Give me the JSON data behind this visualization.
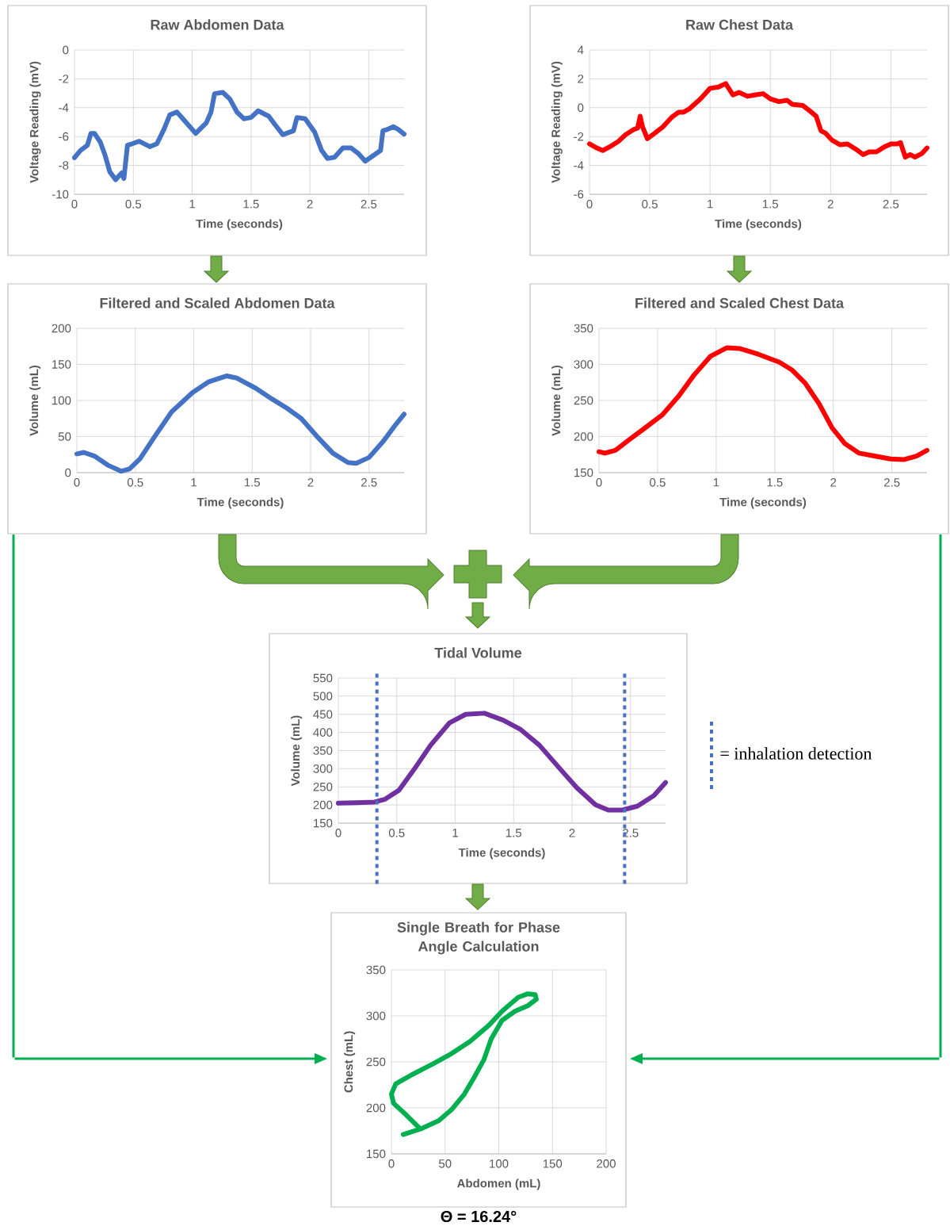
{
  "chart_data": [
    {
      "type": "line",
      "title": "Raw Abdomen Data",
      "xlabel": "Time (seconds)",
      "ylabel": "Voltage Reading (mV)",
      "x": [
        0,
        0.05,
        0.11,
        0.14,
        0.17,
        0.22,
        0.26,
        0.3,
        0.35,
        0.4,
        0.42,
        0.45,
        0.49,
        0.55,
        0.64,
        0.7,
        0.76,
        0.81,
        0.87,
        0.94,
        1.03,
        1.12,
        1.16,
        1.19,
        1.26,
        1.32,
        1.38,
        1.44,
        1.5,
        1.56,
        1.65,
        1.7,
        1.77,
        1.86,
        1.89,
        1.96,
        2.04,
        2.1,
        2.15,
        2.21,
        2.28,
        2.35,
        2.41,
        2.47,
        2.55,
        2.6,
        2.62,
        2.66,
        2.71,
        2.75,
        2.8
      ],
      "series": [
        {
          "color": "#4472c4",
          "values": [
            -7.47,
            -6.97,
            -6.6,
            -5.78,
            -5.78,
            -6.4,
            -7.3,
            -8.44,
            -8.99,
            -8.53,
            -8.9,
            -6.6,
            -6.5,
            -6.33,
            -6.7,
            -6.5,
            -5.5,
            -4.5,
            -4.3,
            -4.95,
            -5.78,
            -5.05,
            -4.3,
            -3.03,
            -2.94,
            -3.4,
            -4.3,
            -4.77,
            -4.68,
            -4.22,
            -4.59,
            -5.14,
            -5.87,
            -5.6,
            -4.68,
            -4.77,
            -5.69,
            -6.97,
            -7.52,
            -7.43,
            -6.79,
            -6.79,
            -7.16,
            -7.71,
            -7.25,
            -6.97,
            -5.6,
            -5.5,
            -5.32,
            -5.5,
            -5.83
          ]
        }
      ],
      "xlim": [
        0,
        2.8
      ],
      "xticks": [
        0,
        0.5,
        1,
        1.5,
        2,
        2.5
      ],
      "ylim": [
        -10,
        0
      ],
      "yticks": [
        -10,
        -8,
        -6,
        -4,
        -2,
        0
      ],
      "grid": true
    },
    {
      "type": "line",
      "title": "Raw Chest Data",
      "xlabel": "Time (seconds)",
      "ylabel": "Voltage Reading (mV)",
      "x": [
        0,
        0.06,
        0.11,
        0.17,
        0.24,
        0.3,
        0.37,
        0.4,
        0.42,
        0.44,
        0.48,
        0.54,
        0.61,
        0.68,
        0.74,
        0.78,
        0.83,
        0.92,
        1.0,
        1.07,
        1.13,
        1.19,
        1.24,
        1.31,
        1.37,
        1.44,
        1.5,
        1.57,
        1.64,
        1.68,
        1.77,
        1.84,
        1.88,
        1.92,
        1.96,
        2.01,
        2.08,
        2.14,
        2.21,
        2.27,
        2.32,
        2.38,
        2.45,
        2.5,
        2.55,
        2.58,
        2.62,
        2.66,
        2.7,
        2.76,
        2.8
      ],
      "series": [
        {
          "color": "#ff0000",
          "values": [
            -2.51,
            -2.79,
            -2.97,
            -2.7,
            -2.33,
            -1.87,
            -1.5,
            -1.41,
            -0.59,
            -1.32,
            -2.15,
            -1.78,
            -1.32,
            -0.68,
            -0.31,
            -0.31,
            -0.07,
            0.61,
            1.34,
            1.43,
            1.67,
            0.88,
            1.06,
            0.79,
            0.88,
            0.97,
            0.61,
            0.42,
            0.51,
            0.24,
            0.15,
            -0.31,
            -0.59,
            -1.6,
            -1.78,
            -2.24,
            -2.57,
            -2.51,
            -2.88,
            -3.25,
            -3.06,
            -3.06,
            -2.7,
            -2.51,
            -2.51,
            -2.42,
            -3.43,
            -3.25,
            -3.43,
            -3.16,
            -2.79
          ]
        }
      ],
      "xlim": [
        0,
        2.8
      ],
      "xticks": [
        0,
        0.5,
        1,
        1.5,
        2,
        2.5
      ],
      "ylim": [
        -6,
        4
      ],
      "yticks": [
        -6,
        -4,
        -2,
        0,
        2,
        4
      ],
      "grid": true
    },
    {
      "type": "line",
      "title": "Filtered and Scaled Abdomen Data",
      "xlabel": "Time (seconds)",
      "ylabel": "Volume (mL)",
      "x": [
        0,
        0.06,
        0.15,
        0.27,
        0.38,
        0.45,
        0.54,
        0.67,
        0.81,
        0.99,
        1.13,
        1.28,
        1.37,
        1.53,
        1.67,
        1.8,
        1.92,
        2.05,
        2.19,
        2.32,
        2.39,
        2.5,
        2.62,
        2.73,
        2.8
      ],
      "series": [
        {
          "color": "#4472c4",
          "values": [
            26,
            28,
            23,
            10,
            2,
            5,
            19,
            51,
            84,
            111,
            126,
            134,
            131,
            117,
            102,
            89,
            75,
            51,
            27,
            14,
            13,
            21,
            43,
            67,
            81
          ]
        }
      ],
      "xlim": [
        0,
        2.8
      ],
      "xticks": [
        0,
        0.5,
        1,
        1.5,
        2,
        2.5
      ],
      "ylim": [
        0,
        200
      ],
      "yticks": [
        0,
        50,
        100,
        150,
        200
      ],
      "grid": true
    },
    {
      "type": "line",
      "title": "Filtered and Scaled Chest Data",
      "xlabel": "Time (seconds)",
      "ylabel": "Volume (mL)",
      "x": [
        0,
        0.05,
        0.14,
        0.27,
        0.41,
        0.54,
        0.68,
        0.81,
        0.95,
        1.09,
        1.2,
        1.36,
        1.54,
        1.65,
        1.76,
        1.88,
        1.99,
        2.1,
        2.22,
        2.35,
        2.49,
        2.6,
        2.71,
        2.8
      ],
      "series": [
        {
          "color": "#ff0000",
          "values": [
            179,
            177,
            181,
            197,
            214,
            230,
            256,
            285,
            311,
            323,
            322,
            314,
            303,
            292,
            274,
            245,
            212,
            190,
            177,
            173,
            169,
            168,
            173,
            181
          ]
        }
      ],
      "xlim": [
        0,
        2.8
      ],
      "xticks": [
        0,
        0.5,
        1,
        1.5,
        2,
        2.5
      ],
      "ylim": [
        150,
        350
      ],
      "yticks": [
        150,
        200,
        250,
        300,
        350
      ],
      "grid": true
    },
    {
      "type": "line",
      "title": "Tidal Volume",
      "xlabel": "Time (seconds)",
      "ylabel": "Volume (mL)",
      "x": [
        0,
        0.15,
        0.31,
        0.4,
        0.52,
        0.65,
        0.79,
        0.95,
        1.09,
        1.25,
        1.41,
        1.56,
        1.72,
        1.88,
        2.04,
        2.2,
        2.31,
        2.43,
        2.56,
        2.7,
        2.8
      ],
      "series": [
        {
          "color": "#7030a0",
          "values": [
            205,
            206,
            208,
            216,
            241,
            299,
            365,
            426,
            450,
            453,
            434,
            408,
            365,
            306,
            248,
            201,
            186,
            186,
            197,
            226,
            262
          ]
        }
      ],
      "xlim": [
        0,
        2.8
      ],
      "xticks": [
        0,
        0.5,
        1,
        1.5,
        2,
        2.5
      ],
      "ylim": [
        150,
        550
      ],
      "yticks": [
        150,
        200,
        250,
        300,
        350,
        400,
        450,
        500,
        550
      ],
      "grid": true,
      "ref_lines": [
        {
          "axis": "x",
          "value": 0.33,
          "color": "#4472c4",
          "line_style": "dotted"
        },
        {
          "axis": "x",
          "value": 2.45,
          "color": "#4472c4",
          "line_style": "dotted"
        }
      ],
      "annotations": [
        "= inhalation detection"
      ]
    },
    {
      "type": "line",
      "title": "Single Breath for Phase Angle Calculation",
      "xlabel": "Abdomen (mL)",
      "ylabel": "Chest (mL)",
      "x": [
        11,
        27,
        44,
        56,
        68,
        78,
        86,
        93,
        103,
        115,
        127,
        135,
        134,
        127,
        118,
        103,
        91,
        73,
        56,
        39,
        19,
        4,
        0,
        2,
        14,
        27
      ],
      "series": [
        {
          "color": "#00b050",
          "values": [
            171,
            177,
            186,
            198,
            215,
            235,
            252,
            275,
            295,
            305,
            311,
            318,
            323,
            324,
            320,
            305,
            290,
            272,
            259,
            248,
            236,
            226,
            215,
            205,
            192,
            177
          ]
        }
      ],
      "xlim": [
        0,
        200
      ],
      "xticks": [
        0,
        50,
        100,
        150,
        200
      ],
      "ylim": [
        150,
        350
      ],
      "yticks": [
        150,
        200,
        250,
        300,
        350
      ],
      "grid": true,
      "annotations": [
        "Θ = 16.24°"
      ]
    }
  ]
}
